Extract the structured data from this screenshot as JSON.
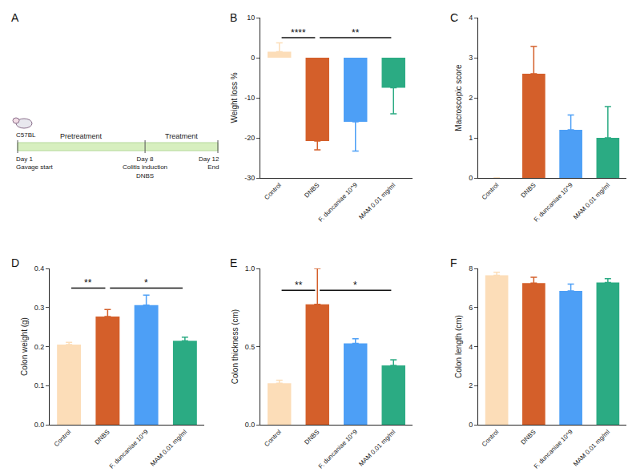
{
  "timeline": {
    "panel": "A",
    "strain": "C57BL",
    "phases": [
      "Pretreatment",
      "Treatment"
    ],
    "events": [
      {
        "day": 1,
        "labels": [
          "Day 1",
          "Gavage start"
        ]
      },
      {
        "day": 8,
        "labels": [
          "Day 8",
          "Colitis induction",
          "DNBS"
        ]
      },
      {
        "day": 12,
        "labels": [
          "Day 12",
          "End"
        ]
      }
    ]
  },
  "chart_data": [
    {
      "panel": "B",
      "type": "bar",
      "y_label": "Weight loss %",
      "categories": [
        "Control",
        "DNBS",
        "F. duncaniae 10^9",
        "MAM 0.01 mg/ml"
      ],
      "values": [
        1.5,
        -20.8,
        -16,
        -7.5
      ],
      "errors": [
        2.2,
        2.2,
        7.3,
        6.5
      ],
      "colors": [
        "#FCDDB8",
        "#D45F2A",
        "#4D9FF6",
        "#2BAB83"
      ],
      "ylim": [
        -30,
        10
      ],
      "yticks": [
        -30,
        -20,
        -10,
        0,
        10
      ],
      "grid": false,
      "significance": [
        {
          "from": 0,
          "to": 1,
          "y": 5,
          "label": "****"
        },
        {
          "from": 1,
          "to": 3,
          "y": 5,
          "label": "**"
        }
      ]
    },
    {
      "panel": "C",
      "type": "bar",
      "y_label": "Macroscopic score",
      "categories": [
        "Control",
        "DNBS",
        "F. duncaniae 10^9",
        "MAM 0.01 mg/ml"
      ],
      "values": [
        0,
        2.6,
        1.2,
        1.0
      ],
      "errors": [
        0,
        0.68,
        0.37,
        0.78
      ],
      "colors": [
        "#FCDDB8",
        "#D45F2A",
        "#4D9FF6",
        "#2BAB83"
      ],
      "ylim": [
        0,
        4
      ],
      "yticks": [
        0,
        1,
        2,
        3,
        4
      ],
      "grid": false,
      "significance": []
    },
    {
      "panel": "D",
      "type": "bar",
      "y_label": "Colon weight (g)",
      "categories": [
        "Control",
        "DNBS",
        "F. duncaniae 10^9",
        "MAM 0.01 mg/ml"
      ],
      "values": [
        0.205,
        0.277,
        0.306,
        0.215
      ],
      "errors": [
        0.006,
        0.018,
        0.026,
        0.009
      ],
      "colors": [
        "#FCDDB8",
        "#D45F2A",
        "#4D9FF6",
        "#2BAB83"
      ],
      "ylim": [
        0,
        0.4
      ],
      "yticks": [
        {
          "value": 0,
          "label": "0.0"
        },
        0.1,
        0.2,
        0.3,
        0.4
      ],
      "grid": false,
      "significance": [
        {
          "from": 0,
          "to": 1,
          "y": 0.35,
          "label": "**"
        },
        {
          "from": 1,
          "to": 3,
          "y": 0.35,
          "label": "*"
        }
      ]
    },
    {
      "panel": "E",
      "type": "bar",
      "y_label": "Colon thickness (cm)",
      "categories": [
        "Control",
        "DNBS",
        "F. duncaniae 10^9",
        "MAM 0.01 mg/ml"
      ],
      "values": [
        0.265,
        0.77,
        0.52,
        0.38
      ],
      "errors": [
        0.02,
        0.23,
        0.03,
        0.035
      ],
      "colors": [
        "#FCDDB8",
        "#D45F2A",
        "#4D9FF6",
        "#2BAB83"
      ],
      "ylim": [
        0,
        1.0
      ],
      "yticks": [
        {
          "value": 0,
          "label": "0.0"
        },
        0.5,
        {
          "value": 1.0,
          "label": "1.0"
        }
      ],
      "grid": false,
      "significance": [
        {
          "from": 0,
          "to": 1,
          "y": 0.86,
          "label": "**"
        },
        {
          "from": 1,
          "to": 3,
          "y": 0.86,
          "label": "*"
        }
      ]
    },
    {
      "panel": "F",
      "type": "bar",
      "y_label": "Colon length (cm)",
      "categories": [
        "Control",
        "DNBS",
        "F. duncaniae 10^9",
        "MAM 0.01 mg/ml"
      ],
      "values": [
        7.65,
        7.25,
        6.85,
        7.28
      ],
      "errors": [
        0.15,
        0.3,
        0.35,
        0.2
      ],
      "colors": [
        "#FCDDB8",
        "#D45F2A",
        "#4D9FF6",
        "#2BAB83"
      ],
      "ylim": [
        0,
        8
      ],
      "yticks": [
        0,
        2,
        4,
        6,
        8
      ],
      "grid": false,
      "significance": []
    }
  ]
}
